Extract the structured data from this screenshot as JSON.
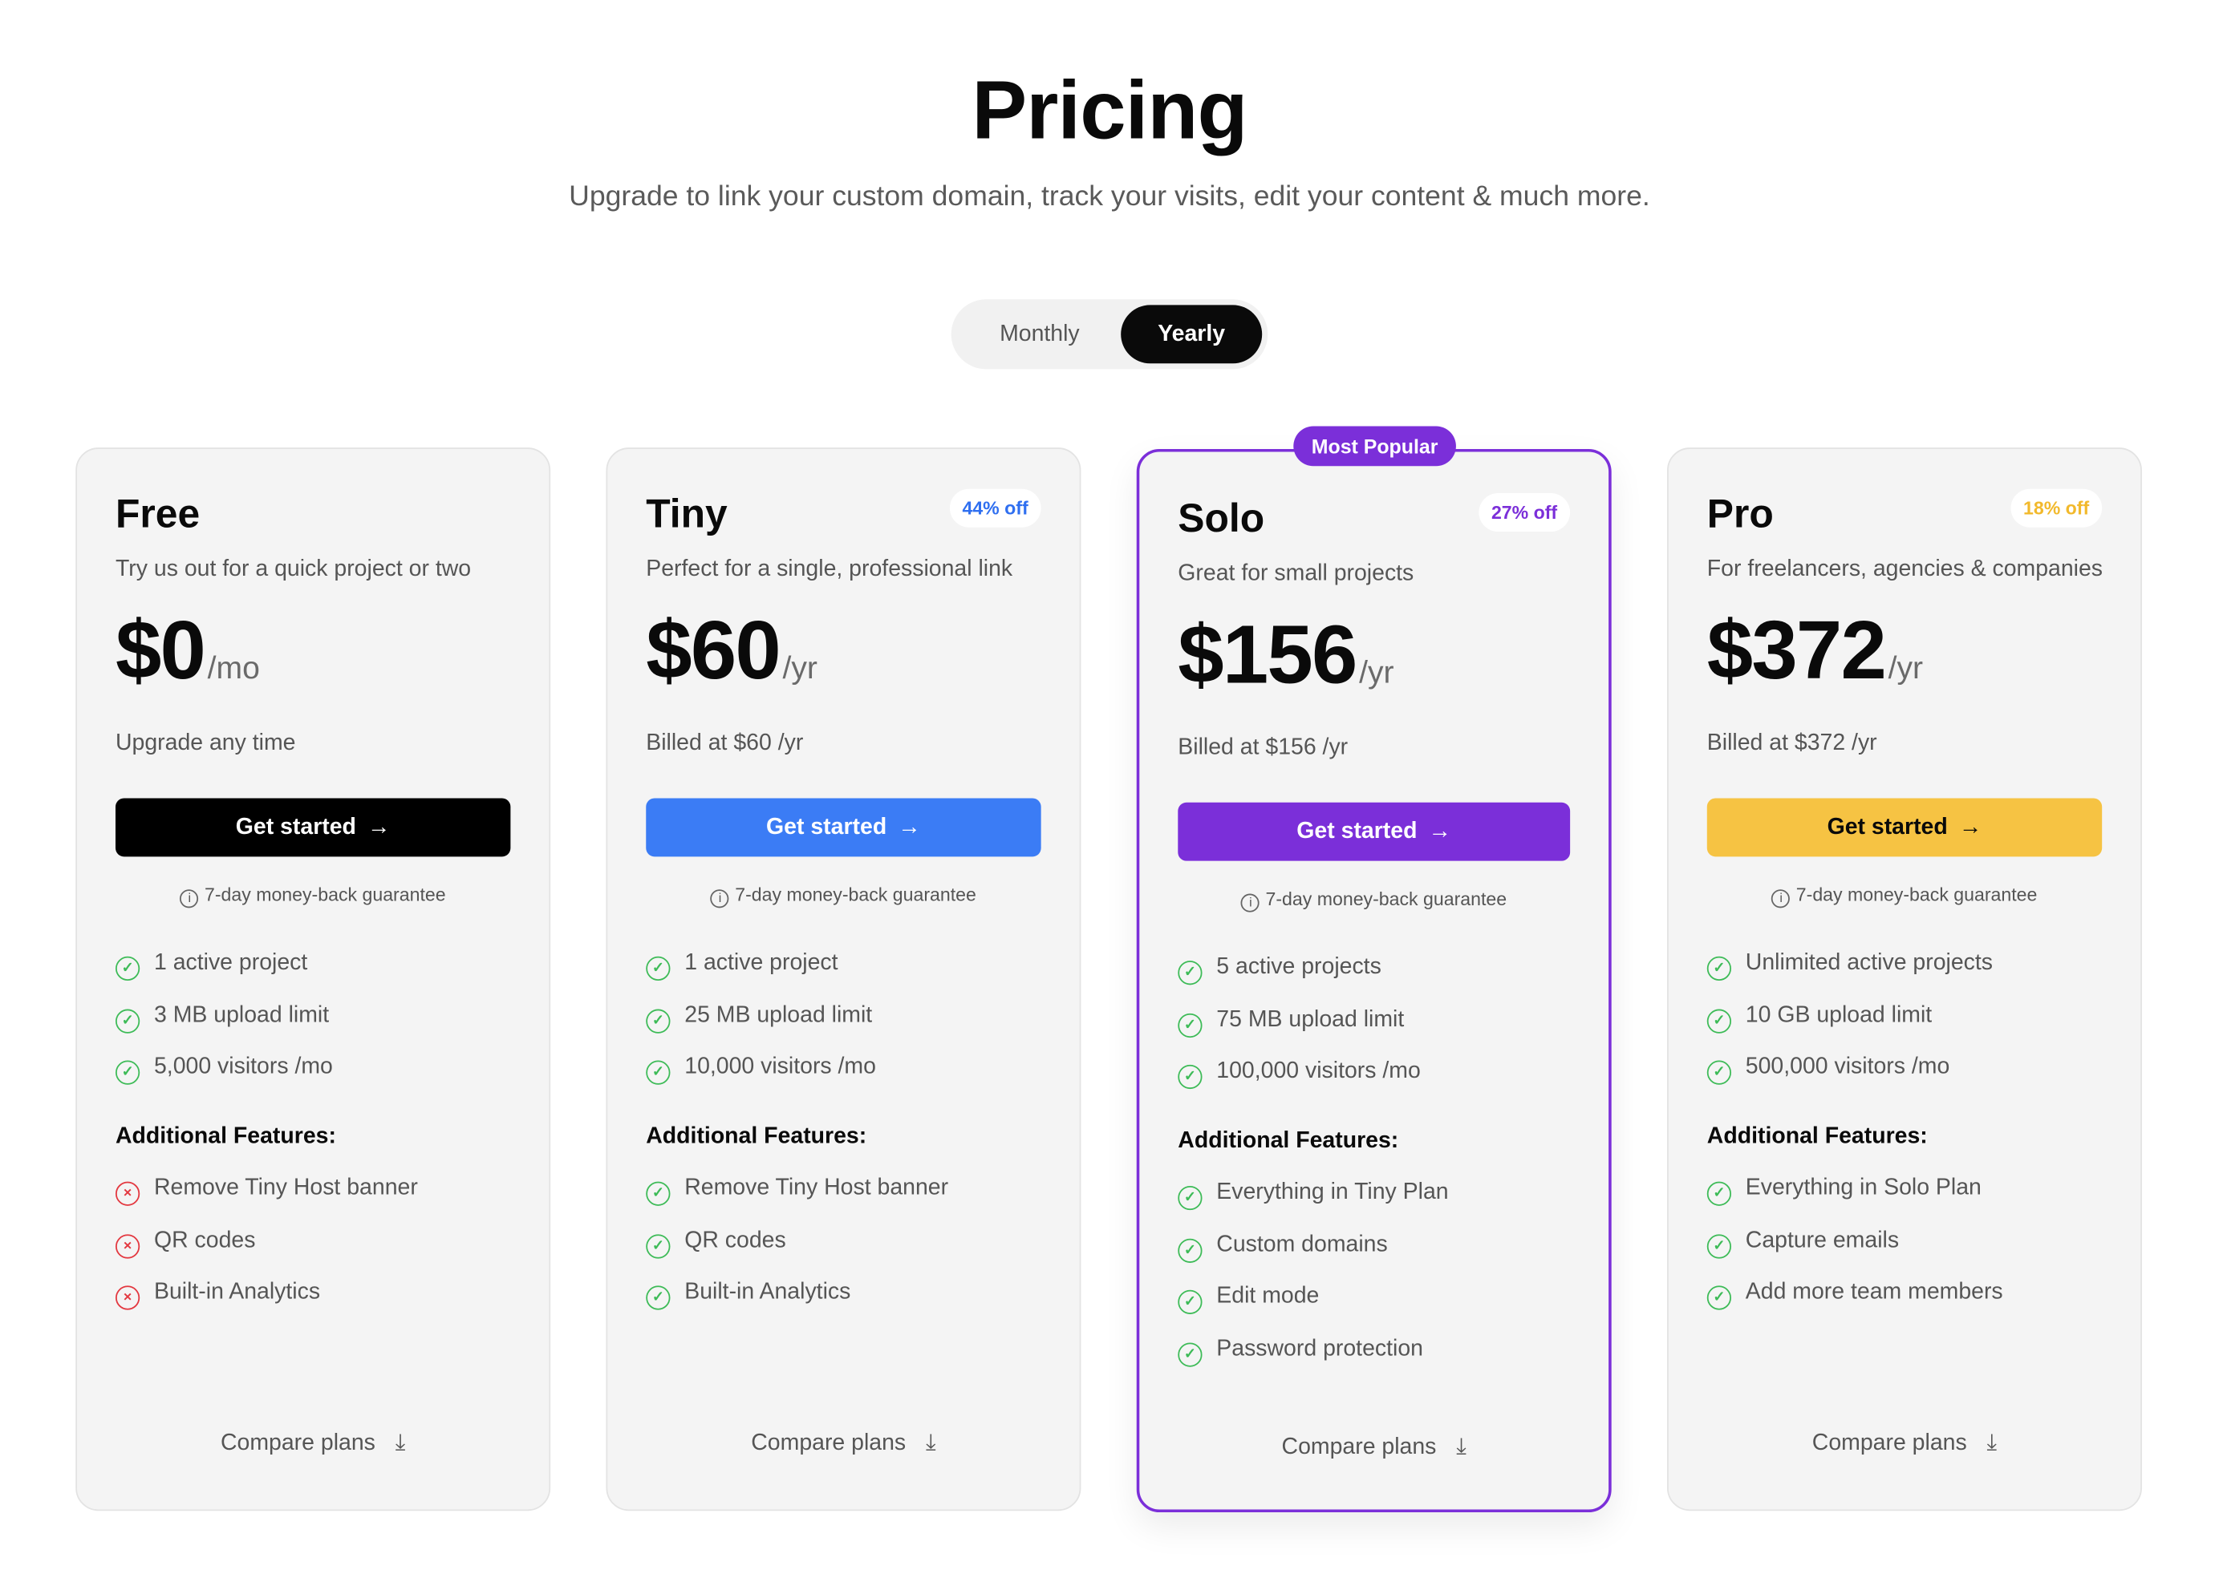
{
  "header": {
    "title": "Pricing",
    "subtitle": "Upgrade to link your custom domain, track your visits, edit your content & much more."
  },
  "billing_toggle": {
    "monthly": "Monthly",
    "yearly": "Yearly",
    "selected": "Yearly"
  },
  "colors": {
    "green_check": "#3dbb57",
    "red_x": "#e3373f",
    "popular": "#7b2fd9"
  },
  "plans": [
    {
      "name": "Free",
      "discount": "",
      "description": "Try us out for a quick project or two",
      "price": "$0",
      "period": "/mo",
      "billed": "Upgrade any time",
      "button": "Get started",
      "button_color": "#000000",
      "button_text_color": "#ffffff",
      "guarantee": "7-day money-back guarantee",
      "features": [
        "1 active project",
        "3 MB upload limit",
        "5,000 visitors /mo"
      ],
      "additional_title": "Additional Features:",
      "additional": [
        {
          "label": "Remove Tiny Host banner",
          "included": false
        },
        {
          "label": "QR codes",
          "included": false
        },
        {
          "label": "Built-in Analytics",
          "included": false
        }
      ],
      "compare": "Compare plans"
    },
    {
      "name": "Tiny",
      "discount": "44% off",
      "discount_color": "#2f6ff0",
      "description": "Perfect for a single, professional link",
      "price": "$60",
      "period": "/yr",
      "billed": "Billed at $60 /yr",
      "button": "Get started",
      "button_color": "#3b7cf5",
      "button_text_color": "#ffffff",
      "guarantee": "7-day money-back guarantee",
      "features": [
        "1 active project",
        "25 MB upload limit",
        "10,000 visitors /mo"
      ],
      "additional_title": "Additional Features:",
      "additional": [
        {
          "label": "Remove Tiny Host banner",
          "included": true
        },
        {
          "label": "QR codes",
          "included": true
        },
        {
          "label": "Built-in Analytics",
          "included": true
        }
      ],
      "compare": "Compare plans"
    },
    {
      "name": "Solo",
      "badge": "Most Popular",
      "discount": "27% off",
      "discount_color": "#7b2fd9",
      "description": "Great for small projects",
      "price": "$156",
      "period": "/yr",
      "billed": "Billed at $156 /yr",
      "button": "Get started",
      "button_color": "#7b2fd9",
      "button_text_color": "#ffffff",
      "guarantee": "7-day money-back guarantee",
      "features": [
        "5 active projects",
        "75 MB upload limit",
        "100,000 visitors /mo"
      ],
      "additional_title": "Additional Features:",
      "additional": [
        {
          "label": "Everything in Tiny Plan",
          "included": true
        },
        {
          "label": "Custom domains",
          "included": true
        },
        {
          "label": "Edit mode",
          "included": true
        },
        {
          "label": "Password protection",
          "included": true
        }
      ],
      "compare": "Compare plans"
    },
    {
      "name": "Pro",
      "discount": "18% off",
      "discount_color": "#f2b92c",
      "description": "For freelancers, agencies & companies",
      "price": "$372",
      "period": "/yr",
      "billed": "Billed at $372 /yr",
      "button": "Get started",
      "button_color": "#f6c343",
      "button_text_color": "#0a0a0a",
      "guarantee": "7-day money-back guarantee",
      "features": [
        "Unlimited active projects",
        "10 GB upload limit",
        "500,000 visitors /mo"
      ],
      "additional_title": "Additional Features:",
      "additional": [
        {
          "label": "Everything in Solo Plan",
          "included": true
        },
        {
          "label": "Capture emails",
          "included": true
        },
        {
          "label": "Add more team members",
          "included": true
        }
      ],
      "compare": "Compare plans"
    }
  ]
}
